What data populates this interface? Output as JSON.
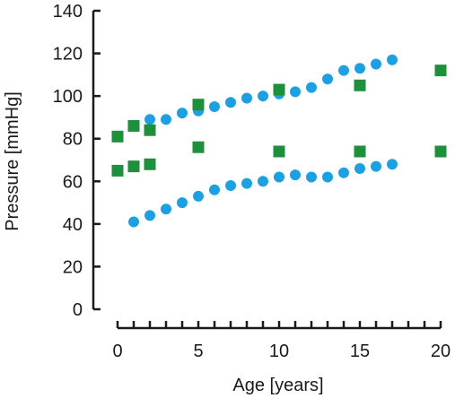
{
  "chart_data": {
    "type": "scatter",
    "title": "",
    "xlabel": "Age [years]",
    "ylabel": "Pressure [mmHg]",
    "xlim": [
      0,
      20
    ],
    "ylim": [
      0,
      140
    ],
    "xticks": [
      0,
      5,
      10,
      15,
      20
    ],
    "yticks": [
      0,
      20,
      40,
      60,
      80,
      100,
      120,
      140
    ],
    "x_minor_ticks": [
      0,
      1,
      2,
      3,
      4,
      5,
      6,
      7,
      8,
      9,
      10,
      11,
      12,
      13,
      14,
      15,
      16,
      17,
      18,
      19,
      20
    ],
    "grid": false,
    "legend": "none",
    "series": [
      {
        "marker": "circle",
        "color": "#1ba1e2",
        "points": [
          [
            1,
            86
          ],
          [
            2,
            89
          ],
          [
            3,
            89
          ],
          [
            4,
            92
          ],
          [
            5,
            93
          ],
          [
            6,
            95
          ],
          [
            7,
            97
          ],
          [
            8,
            99
          ],
          [
            9,
            100
          ],
          [
            10,
            101
          ],
          [
            11,
            102
          ],
          [
            12,
            104
          ],
          [
            13,
            108
          ],
          [
            14,
            112
          ],
          [
            15,
            113
          ],
          [
            16,
            115
          ],
          [
            17,
            117
          ]
        ]
      },
      {
        "marker": "circle",
        "color": "#1ba1e2",
        "points": [
          [
            1,
            41
          ],
          [
            2,
            44
          ],
          [
            3,
            47
          ],
          [
            4,
            50
          ],
          [
            5,
            53
          ],
          [
            6,
            56
          ],
          [
            7,
            58
          ],
          [
            8,
            59
          ],
          [
            9,
            60
          ],
          [
            10,
            62
          ],
          [
            11,
            63
          ],
          [
            12,
            62
          ],
          [
            13,
            62
          ],
          [
            14,
            64
          ],
          [
            15,
            66
          ],
          [
            16,
            67
          ],
          [
            17,
            68
          ]
        ]
      },
      {
        "marker": "square",
        "color": "#1e8f3a",
        "points": [
          [
            0,
            81
          ],
          [
            1,
            86
          ],
          [
            2,
            84
          ],
          [
            5,
            96
          ],
          [
            10,
            103
          ],
          [
            15,
            105
          ],
          [
            20,
            112
          ]
        ]
      },
      {
        "marker": "square",
        "color": "#1e8f3a",
        "points": [
          [
            0,
            65
          ],
          [
            1,
            67
          ],
          [
            2,
            68
          ],
          [
            5,
            76
          ],
          [
            10,
            74
          ],
          [
            15,
            74
          ],
          [
            20,
            74
          ]
        ]
      }
    ]
  }
}
